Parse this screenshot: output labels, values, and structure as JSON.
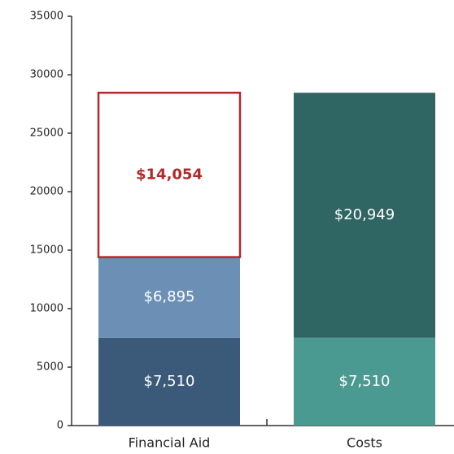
{
  "chart_data": {
    "type": "stacked_bar",
    "categories": [
      "Financial Aid",
      "Costs"
    ],
    "series": [
      {
        "values": [
          7510,
          7510
        ],
        "value_labels": [
          "$7,510",
          "$7,510"
        ],
        "colors": [
          "#3b5a7a",
          "#4b9a91"
        ],
        "label_color": "#ffffff"
      },
      {
        "values": [
          6895,
          20949
        ],
        "value_labels": [
          "$6,895",
          "$20,949"
        ],
        "colors": [
          "#6b8fb5",
          "#2f6562"
        ],
        "label_color": "#ffffff"
      },
      {
        "values": [
          14054,
          null
        ],
        "value_labels": [
          "$14,054",
          null
        ],
        "colors": [
          "#ffffff",
          null
        ],
        "edge_color": "#b0292b",
        "label_color": "#b0292b"
      }
    ],
    "ylim": [
      0,
      35000
    ],
    "yticks": [
      0,
      5000,
      10000,
      15000,
      20000,
      25000,
      30000,
      35000
    ]
  }
}
